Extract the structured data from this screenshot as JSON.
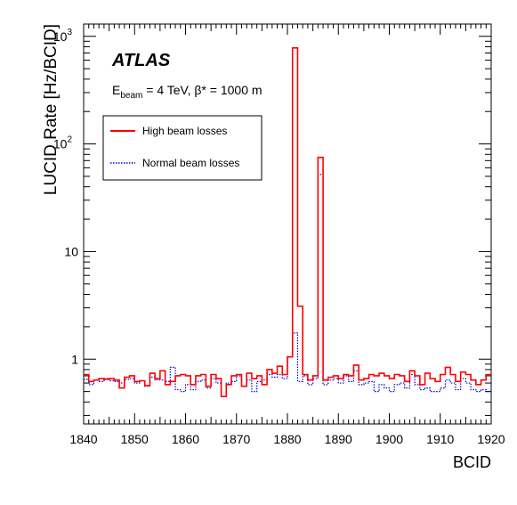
{
  "chart_data": {
    "type": "line",
    "subtype": "step-histogram",
    "experiment_label": "ATLAS",
    "condition_parts": [
      "E",
      "beam",
      " = 4 TeV, ",
      "β*",
      " = 1000 m"
    ],
    "xlabel": "BCID",
    "ylabel": "LUCID Rate [Hz/BCID]",
    "xlim": [
      1840,
      1920
    ],
    "ylim": [
      0.25,
      1300
    ],
    "log_y": true,
    "grid": false,
    "legend_position": "top-left",
    "x_ticks": [
      "1840",
      "1850",
      "1860",
      "1870",
      "1880",
      "1890",
      "1900",
      "1910",
      "1920"
    ],
    "y_ticks": [
      {
        "value": 1,
        "base": "1",
        "exp": ""
      },
      {
        "value": 10,
        "base": "10",
        "exp": ""
      },
      {
        "value": 100,
        "base": "10",
        "exp": "2"
      },
      {
        "value": 1000,
        "base": "10",
        "exp": "3"
      }
    ],
    "x_start": 1840,
    "bin_width": 1,
    "series": [
      {
        "name": "High beam losses",
        "color": "#ff0000",
        "style": "solid",
        "values": [
          0.72,
          0.62,
          0.64,
          0.66,
          0.65,
          0.66,
          0.64,
          0.54,
          0.68,
          0.7,
          0.62,
          0.63,
          0.57,
          0.74,
          0.66,
          0.78,
          0.58,
          0.62,
          0.7,
          0.72,
          0.7,
          0.58,
          0.7,
          0.72,
          0.56,
          0.72,
          0.66,
          0.45,
          0.58,
          0.7,
          0.72,
          0.56,
          0.74,
          0.66,
          0.7,
          0.58,
          0.8,
          0.74,
          0.86,
          0.72,
          1.05,
          780,
          3.1,
          0.72,
          0.64,
          0.7,
          75,
          0.64,
          0.68,
          0.7,
          0.66,
          0.72,
          0.7,
          0.88,
          0.64,
          0.66,
          0.72,
          0.7,
          0.74,
          0.7,
          0.66,
          0.72,
          0.7,
          0.62,
          0.78,
          0.7,
          0.58,
          0.74,
          0.66,
          0.62,
          0.72,
          0.84,
          0.72,
          0.62,
          0.76,
          0.72,
          0.64,
          0.58,
          0.64,
          0.72
        ]
      },
      {
        "name": "Normal beam losses",
        "color": "#0000cc",
        "style": "dotted",
        "values": [
          0.65,
          0.58,
          0.64,
          0.62,
          0.66,
          0.63,
          0.62,
          0.6,
          0.65,
          0.66,
          0.6,
          0.63,
          0.56,
          0.68,
          0.64,
          0.64,
          0.62,
          0.84,
          0.52,
          0.5,
          0.58,
          0.52,
          0.62,
          0.64,
          0.54,
          0.66,
          0.6,
          0.45,
          0.6,
          0.62,
          0.7,
          0.56,
          0.64,
          0.5,
          0.62,
          0.64,
          0.72,
          0.68,
          0.72,
          0.66,
          1.05,
          1.75,
          0.62,
          0.7,
          0.58,
          0.66,
          52,
          0.58,
          0.64,
          0.66,
          0.6,
          0.7,
          0.62,
          0.78,
          0.58,
          0.6,
          0.62,
          0.5,
          0.58,
          0.54,
          0.5,
          0.58,
          0.6,
          0.54,
          0.72,
          0.58,
          0.52,
          0.54,
          0.5,
          0.5,
          0.54,
          0.64,
          0.6,
          0.52,
          0.66,
          0.6,
          0.52,
          0.5,
          0.52,
          0.5
        ]
      }
    ]
  }
}
